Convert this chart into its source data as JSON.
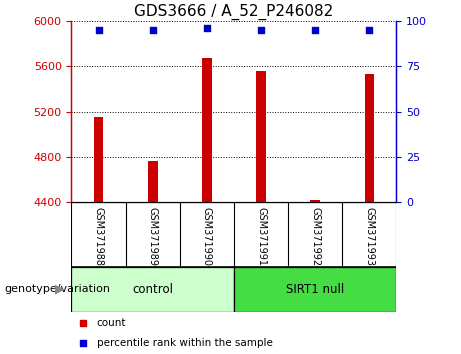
{
  "title": "GDS3666 / A_52_P246082",
  "samples": [
    "GSM371988",
    "GSM371989",
    "GSM371990",
    "GSM371991",
    "GSM371992",
    "GSM371993"
  ],
  "count_values": [
    5155,
    4760,
    5670,
    5560,
    4415,
    5530
  ],
  "percentile_values": [
    95,
    95,
    96,
    95,
    95,
    95
  ],
  "ylim_left": [
    4400,
    6000
  ],
  "ylim_right": [
    0,
    100
  ],
  "yticks_left": [
    4400,
    4800,
    5200,
    5600,
    6000
  ],
  "yticks_right": [
    0,
    25,
    50,
    75,
    100
  ],
  "bar_color": "#cc0000",
  "dot_color": "#0000cc",
  "groups": [
    {
      "label": "control",
      "indices": [
        0,
        1,
        2
      ],
      "color": "#ccffcc"
    },
    {
      "label": "SIRT1 null",
      "indices": [
        3,
        4,
        5
      ],
      "color": "#44dd44"
    }
  ],
  "group_label": "genotype/variation",
  "legend_items": [
    {
      "label": "count",
      "color": "#cc0000"
    },
    {
      "label": "percentile rank within the sample",
      "color": "#0000cc"
    }
  ],
  "tick_area_color": "#c8c8c8",
  "title_fontsize": 11,
  "tick_fontsize": 8,
  "bar_width": 0.18
}
